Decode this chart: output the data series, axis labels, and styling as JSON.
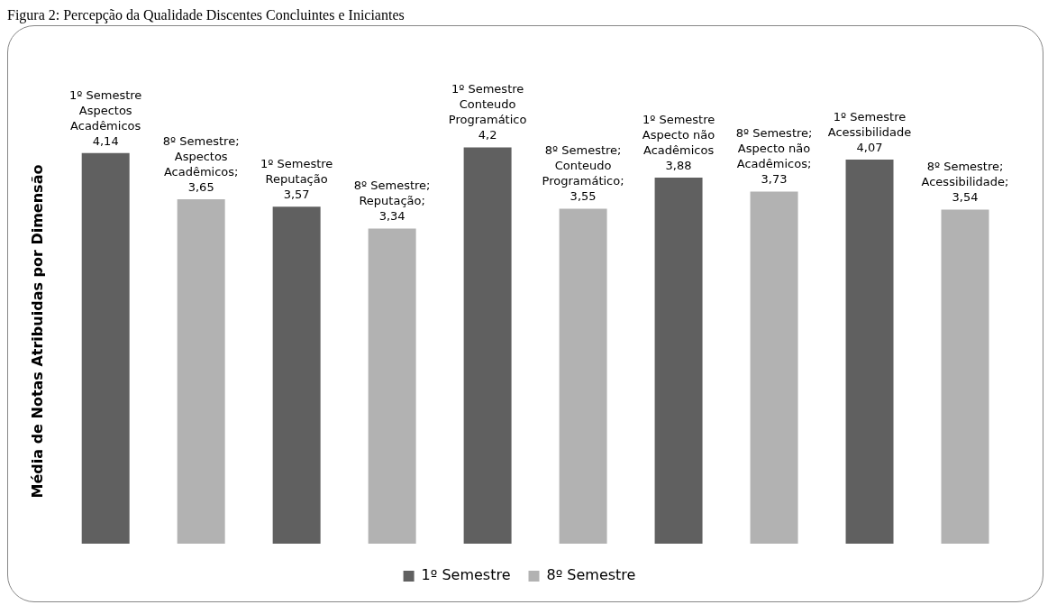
{
  "chart_data": {
    "type": "bar",
    "title": "Figura 2: Percepção da Qualidade Discentes Concluintes e Iniciantes",
    "ylabel": "Média de Notas Atribuidas por Dimensão",
    "categories": [
      null,
      null,
      null,
      null,
      null
    ],
    "series": [
      {
        "name": "1º Semestre",
        "color": "#606060",
        "values": [
          4.14,
          3.57,
          4.2,
          3.88,
          4.07
        ],
        "value_labels": [
          "1º Semestre Aspectos Acadêmicos 4,14",
          "1º Semestre Reputação 3,57",
          "1º Semestre Conteudo Programático 4,2",
          "1º Semestre Aspecto não Acadêmicos 3,88",
          "1º Semestre Acessibilidade 4,07"
        ]
      },
      {
        "name": "8º Semestre",
        "color": "#b2b2b2",
        "values": [
          3.65,
          3.34,
          3.55,
          3.73,
          3.54
        ],
        "value_labels": [
          "8º Semestre; Aspectos Acadêmicos; 3,65",
          "8º Semestre; Reputação; 3,34",
          "8º Semestre; Conteudo Programático; 3,55",
          "8º Semestre; Aspecto não Acadêmicos; 3,73",
          "8º Semestre; Acessibilidade; 3,54"
        ]
      }
    ],
    "tick_labels": false,
    "legend": "bottom"
  }
}
